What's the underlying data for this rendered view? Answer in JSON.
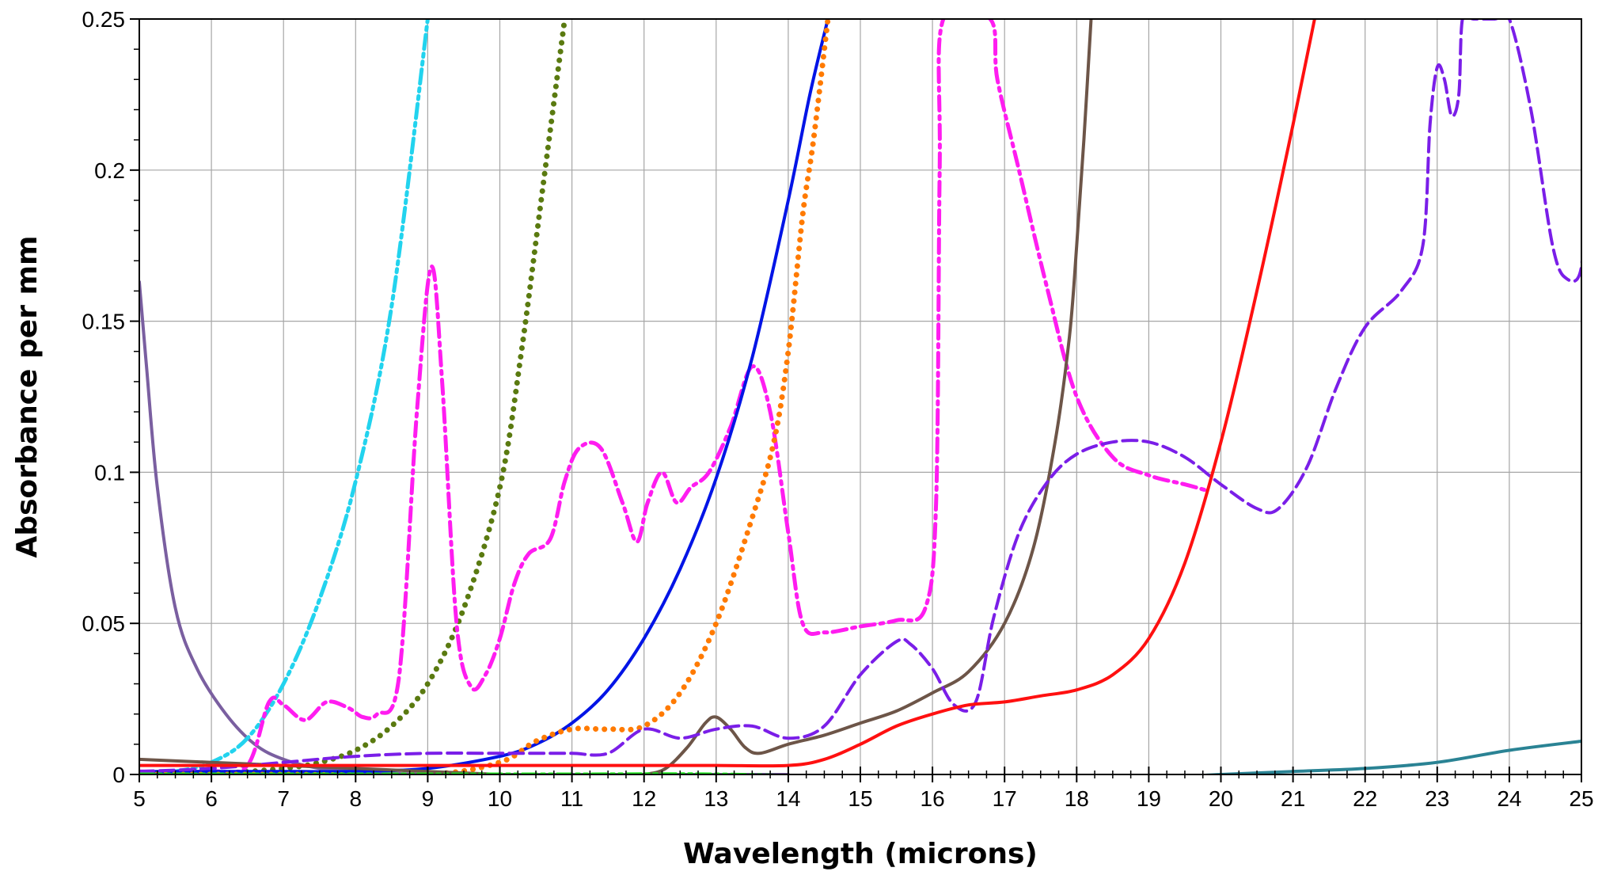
{
  "chart_data": {
    "type": "line",
    "title": "",
    "xlabel": "Wavelength (microns)",
    "ylabel": "Absorbance per mm",
    "xlim": [
      5,
      25
    ],
    "ylim": [
      0,
      0.25
    ],
    "grid": true,
    "legend": "none",
    "x_ticks": [
      5,
      6,
      7,
      8,
      9,
      10,
      11,
      12,
      13,
      14,
      15,
      16,
      17,
      18,
      19,
      20,
      21,
      22,
      23,
      24,
      25
    ],
    "x_tick_labels": [
      "5",
      "6",
      "7",
      "8",
      "9",
      "10",
      "11",
      "12",
      "13",
      "14",
      "15",
      "16",
      "17",
      "18",
      "19",
      "20",
      "21",
      "22",
      "23",
      "24",
      "25"
    ],
    "y_ticks": [
      0,
      0.05,
      0.1,
      0.15,
      0.2,
      0.25
    ],
    "y_tick_labels": [
      "0",
      "0.05",
      "0.1",
      "0.15",
      "0.2",
      "0.25"
    ],
    "series": [
      {
        "color": "#7a5fa0",
        "style": "solid",
        "width": 4,
        "x": [
          5,
          5.1,
          5.25,
          5.5,
          5.8,
          6.2,
          6.6,
          7,
          7.5,
          8,
          9,
          10,
          11,
          12,
          13,
          14
        ],
        "y": [
          0.163,
          0.135,
          0.095,
          0.055,
          0.035,
          0.02,
          0.01,
          0.005,
          0.002,
          0.001,
          0,
          0,
          0,
          0,
          0,
          0
        ]
      },
      {
        "color": "#22d3ee",
        "style": "dashdotdot",
        "width": 5,
        "x": [
          5,
          5.5,
          6,
          6.5,
          7,
          7.5,
          8,
          8.5,
          9
        ],
        "y": [
          0,
          0.001,
          0.004,
          0.012,
          0.03,
          0.058,
          0.097,
          0.155,
          0.25
        ]
      },
      {
        "color": "#5a7a10",
        "style": "dotted",
        "width": 7,
        "x": [
          6,
          7,
          7.5,
          8,
          8.5,
          9,
          9.5,
          10,
          10.3,
          10.6,
          10.9
        ],
        "y": [
          0,
          0.002,
          0.004,
          0.008,
          0.016,
          0.03,
          0.055,
          0.095,
          0.14,
          0.195,
          0.25
        ]
      },
      {
        "color": "#ff1cf0",
        "style": "dashdot",
        "width": 5,
        "x": [
          5,
          6,
          6.5,
          6.8,
          7,
          7.3,
          7.6,
          7.9,
          8.1,
          8.3,
          8.6,
          8.85,
          9.05,
          9.2,
          9.4,
          9.6,
          9.8,
          10,
          10.2,
          10.4,
          10.7,
          10.9,
          11.1,
          11.4,
          11.7,
          11.9,
          12.05,
          12.25,
          12.45,
          12.65,
          12.9,
          13.2,
          13.5,
          13.75,
          14,
          14.2,
          14.5,
          15,
          15.5,
          15.9,
          16.05,
          16.1,
          16.15,
          16.8,
          16.9,
          17.2,
          17.6,
          18,
          18.5,
          19,
          19.5,
          19.8
        ],
        "y": [
          0.001,
          0.001,
          0.003,
          0.024,
          0.023,
          0.018,
          0.024,
          0.022,
          0.019,
          0.02,
          0.032,
          0.12,
          0.168,
          0.13,
          0.05,
          0.029,
          0.033,
          0.045,
          0.063,
          0.073,
          0.078,
          0.097,
          0.108,
          0.108,
          0.09,
          0.077,
          0.09,
          0.1,
          0.09,
          0.095,
          0.1,
          0.115,
          0.135,
          0.12,
          0.08,
          0.05,
          0.047,
          0.049,
          0.051,
          0.055,
          0.09,
          0.2,
          0.25,
          0.25,
          0.23,
          0.2,
          0.16,
          0.125,
          0.105,
          0.099,
          0.096,
          0.094
        ]
      },
      {
        "color": "#0014e6",
        "style": "solid",
        "width": 4,
        "x": [
          5,
          6,
          7,
          8,
          9,
          10,
          10.5,
          11,
          11.5,
          12,
          12.5,
          13,
          13.5,
          14,
          14.3,
          14.55
        ],
        "y": [
          0.001,
          0.001,
          0.001,
          0.001,
          0.002,
          0.006,
          0.01,
          0.017,
          0.028,
          0.045,
          0.068,
          0.098,
          0.138,
          0.19,
          0.225,
          0.25
        ]
      },
      {
        "color": "#ff7a00",
        "style": "dotted",
        "width": 7,
        "x": [
          5,
          7,
          9,
          10,
          10.5,
          11,
          11.5,
          12,
          12.5,
          13,
          13.5,
          13.8,
          14,
          14.2,
          14.35,
          14.55
        ],
        "y": [
          0,
          0,
          0,
          0.004,
          0.011,
          0.015,
          0.015,
          0.016,
          0.027,
          0.05,
          0.085,
          0.11,
          0.14,
          0.185,
          0.21,
          0.25
        ]
      },
      {
        "color": "#6d5548",
        "style": "solid",
        "width": 4,
        "x": [
          5,
          6,
          7,
          8,
          9,
          10,
          11,
          11.5,
          12,
          12.3,
          12.6,
          12.85,
          13,
          13.2,
          13.4,
          13.6,
          14,
          14.5,
          15,
          15.5,
          16,
          16.5,
          17,
          17.4,
          17.7,
          17.9,
          18,
          18.1,
          18.2
        ],
        "y": [
          0.005,
          0.004,
          0.003,
          0.002,
          0.001,
          0,
          -0.001,
          -0.001,
          0,
          0.002,
          0.009,
          0.017,
          0.019,
          0.015,
          0.009,
          0.007,
          0.01,
          0.013,
          0.017,
          0.021,
          0.027,
          0.034,
          0.05,
          0.075,
          0.11,
          0.145,
          0.175,
          0.21,
          0.25
        ]
      },
      {
        "color": "#7a1ee8",
        "style": "dashed",
        "width": 4,
        "x": [
          5,
          6,
          7,
          8,
          9,
          10,
          10.5,
          11,
          11.5,
          12,
          12.5,
          13,
          13.5,
          14,
          14.5,
          15,
          15.5,
          15.7,
          16,
          16.3,
          16.6,
          16.85,
          17.2,
          17.6,
          18,
          18.5,
          19,
          19.5,
          20,
          20.5,
          20.8,
          21.2,
          21.6,
          22,
          22.5,
          22.8,
          22.9,
          23,
          23.1,
          23.2,
          23.3,
          23.35,
          23.5,
          23.8,
          24,
          24.3,
          24.6,
          24.8,
          25,
          25.05
        ],
        "y": [
          0.001,
          0.002,
          0.004,
          0.006,
          0.007,
          0.007,
          0.007,
          0.007,
          0.007,
          0.015,
          0.012,
          0.015,
          0.016,
          0.012,
          0.016,
          0.033,
          0.044,
          0.043,
          0.035,
          0.023,
          0.024,
          0.052,
          0.08,
          0.097,
          0.106,
          0.11,
          0.11,
          0.105,
          0.096,
          0.088,
          0.088,
          0.102,
          0.128,
          0.148,
          0.16,
          0.175,
          0.215,
          0.234,
          0.23,
          0.218,
          0.225,
          0.25,
          0.25,
          0.25,
          0.25,
          0.22,
          0.175,
          0.164,
          0.168,
          0.2
        ]
      },
      {
        "color": "#ff1010",
        "style": "solid",
        "width": 4,
        "x": [
          5,
          6,
          7,
          8,
          9,
          10,
          11,
          12,
          13,
          14,
          14.5,
          15,
          15.5,
          16,
          16.5,
          17,
          17.5,
          18,
          18.5,
          19,
          19.5,
          20,
          20.5,
          21,
          21.3
        ],
        "y": [
          0.003,
          0.003,
          0.003,
          0.003,
          0.003,
          0.003,
          0.003,
          0.003,
          0.003,
          0.003,
          0.005,
          0.01,
          0.016,
          0.02,
          0.023,
          0.024,
          0.026,
          0.028,
          0.033,
          0.045,
          0.07,
          0.11,
          0.16,
          0.215,
          0.25
        ]
      },
      {
        "color": "#2a8394",
        "style": "solid",
        "width": 4,
        "x": [
          5,
          8,
          11,
          14,
          17,
          19,
          20,
          21,
          22,
          23,
          24,
          25
        ],
        "y": [
          0,
          0,
          -0.001,
          -0.001,
          -0.001,
          -0.001,
          0,
          0.001,
          0.002,
          0.004,
          0.008,
          0.011
        ]
      },
      {
        "color": "#22e022",
        "style": "dashdotdot",
        "width": 5,
        "x": [
          5,
          7,
          9,
          11,
          13,
          15,
          17,
          19,
          21,
          23,
          25
        ],
        "y": [
          0,
          0,
          0,
          0,
          0,
          -0.001,
          -0.001,
          -0.001,
          -0.001,
          -0.002,
          -0.002
        ]
      }
    ]
  }
}
